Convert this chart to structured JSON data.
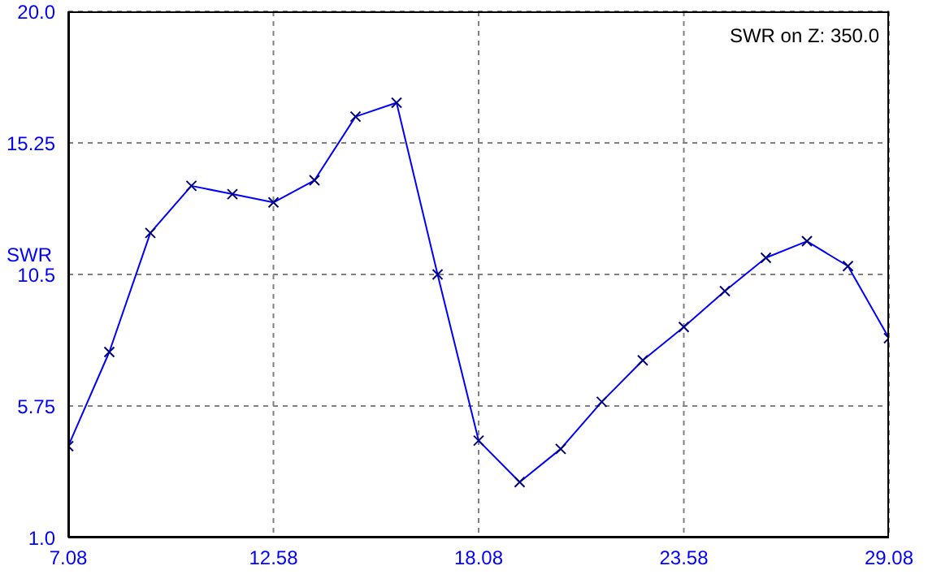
{
  "chart_data": {
    "type": "line",
    "ylabel": "SWR",
    "annotations": [
      "SWR on Z: 350.0"
    ],
    "x": [
      7.08,
      8.18,
      9.28,
      10.38,
      11.48,
      12.58,
      13.68,
      14.78,
      15.88,
      16.98,
      18.08,
      19.18,
      20.28,
      21.38,
      22.48,
      23.58,
      24.68,
      25.78,
      26.88,
      27.98,
      29.08
    ],
    "series": [
      {
        "color": "#0000ff",
        "values": [
          4.3,
          7.7,
          12.0,
          13.7,
          13.4,
          13.1,
          13.9,
          16.2,
          16.7,
          10.5,
          4.5,
          3.0,
          4.2,
          5.9,
          7.4,
          8.6,
          9.9,
          11.1,
          11.7,
          10.8,
          8.2
        ]
      }
    ],
    "xlim": [
      7.08,
      29.08
    ],
    "xticks": [
      7.08,
      12.58,
      18.08,
      23.58,
      29.08
    ],
    "ylim": [
      1,
      20
    ],
    "yticks": [
      {
        "value": 1,
        "label": "1.0"
      },
      5.75,
      10.5,
      15.25,
      {
        "value": 20,
        "label": "20.0"
      }
    ],
    "grid": true,
    "marker": "cross",
    "line_style": "solid",
    "legend": false
  }
}
